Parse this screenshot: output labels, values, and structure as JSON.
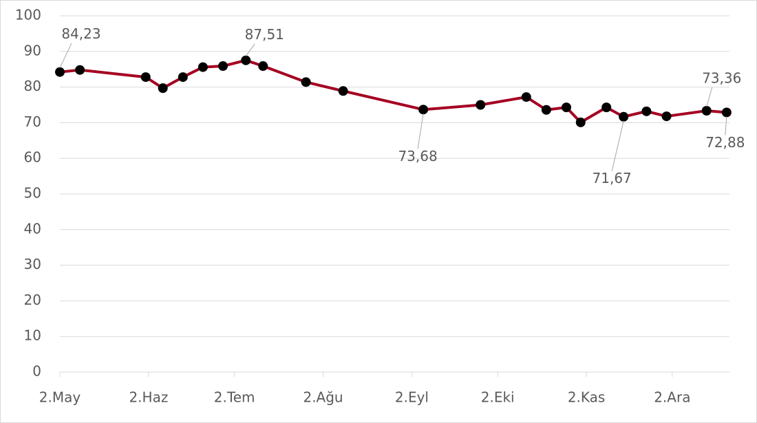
{
  "chart_data": {
    "type": "line",
    "x": [
      0,
      7,
      30,
      36,
      43,
      50,
      57,
      65,
      71,
      86,
      99,
      127,
      147,
      163,
      170,
      177,
      182,
      191,
      197,
      205,
      212,
      226,
      233
    ],
    "series": [
      {
        "color": "#a50021",
        "marker_color": "#000000",
        "values": [
          84.23,
          84.8,
          82.8,
          79.7,
          82.8,
          85.6,
          85.9,
          87.51,
          85.9,
          81.4,
          78.9,
          73.68,
          75.0,
          77.2,
          73.6,
          74.3,
          70.1,
          74.3,
          71.67,
          73.2,
          71.8,
          73.36,
          72.88
        ],
        "value_labels": [
          "84,23",
          null,
          null,
          null,
          null,
          null,
          null,
          "87,51",
          null,
          null,
          null,
          "73,68",
          null,
          null,
          null,
          null,
          null,
          null,
          "71,67",
          null,
          null,
          "73,36",
          "72,88"
        ]
      }
    ],
    "xlim": [
      0,
      234
    ],
    "xticks": [
      {
        "value": 0,
        "label": "2.May"
      },
      {
        "value": 31,
        "label": "2.Haz"
      },
      {
        "value": 61,
        "label": "2.Tem"
      },
      {
        "value": 92,
        "label": "2.Ağu"
      },
      {
        "value": 123,
        "label": "2.Eyl"
      },
      {
        "value": 153,
        "label": "2.Eki"
      },
      {
        "value": 184,
        "label": "2.Kas"
      },
      {
        "value": 214,
        "label": "2.Ara"
      }
    ],
    "ylim": [
      0,
      100
    ],
    "yticks": [
      0,
      10,
      20,
      30,
      40,
      50,
      60,
      70,
      80,
      90,
      100
    ],
    "grid": true
  }
}
